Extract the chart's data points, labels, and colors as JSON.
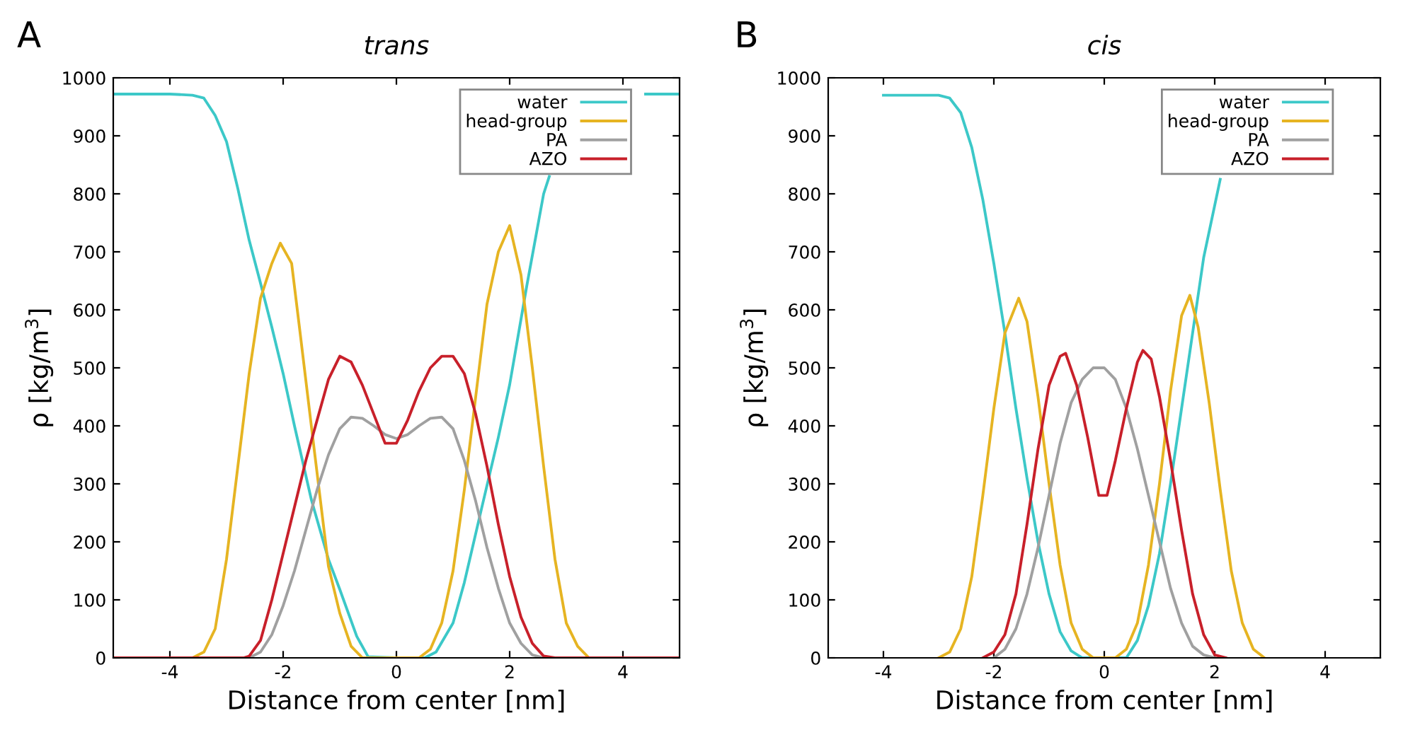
{
  "chart_data": [
    {
      "type": "line",
      "title": "trans",
      "xlabel": "Distance from center [nm]",
      "ylabel": "ρ [kg/m$^{3}$]",
      "annotations": [
        "A"
      ],
      "xlim": [
        -5,
        5
      ],
      "xticks": [
        -4,
        -2,
        0,
        2,
        4
      ],
      "ylim": [
        0,
        1000
      ],
      "yticks": [
        0,
        100,
        200,
        300,
        400,
        500,
        600,
        700,
        800,
        900,
        1000
      ],
      "grid": false,
      "legend": "top right",
      "marker": "none",
      "line_style": "solid",
      "series": [
        {
          "name": "water",
          "color": "#3cc8c8",
          "x": [
            -5,
            -4.5,
            -4,
            -3.6,
            -3.4,
            -3.2,
            -3.0,
            -2.8,
            -2.6,
            -2.4,
            -2.2,
            -2.0,
            -1.8,
            -1.5,
            -1.2,
            -1.0,
            -0.7,
            -0.5,
            0,
            0.5,
            0.7,
            1.0,
            1.2,
            1.5,
            1.8,
            2.0,
            2.3,
            2.6,
            2.7,
            3.5,
            4.4,
            5
          ],
          "values": [
            972,
            972,
            972,
            970,
            965,
            935,
            890,
            809,
            720,
            646,
            570,
            490,
            400,
            272,
            170,
            118,
            37,
            2,
            0,
            0,
            10,
            60,
            130,
            256,
            380,
            471,
            640,
            800,
            830,
            null,
            972,
            972
          ]
        },
        {
          "name": "head-group",
          "color": "#e6b422",
          "x": [
            -5,
            -3.6,
            -3.4,
            -3.2,
            -3.0,
            -2.8,
            -2.6,
            -2.4,
            -2.2,
            -2.05,
            -1.85,
            -1.7,
            -1.5,
            -1.2,
            -1.0,
            -0.8,
            -0.6,
            0,
            0.4,
            0.6,
            0.8,
            1.0,
            1.2,
            1.4,
            1.6,
            1.8,
            2.0,
            2.2,
            2.4,
            2.6,
            2.8,
            3.0,
            3.2,
            3.4,
            5
          ],
          "values": [
            0,
            0,
            10,
            50,
            170,
            330,
            490,
            620,
            680,
            715,
            680,
            560,
            398,
            158,
            77,
            20,
            0,
            0,
            0,
            15,
            60,
            150,
            290,
            450,
            610,
            700,
            745,
            660,
            500,
            330,
            170,
            60,
            20,
            0,
            0
          ]
        },
        {
          "name": "PA",
          "color": "#a0a0a0",
          "x": [
            -5,
            -2.6,
            -2.4,
            -2.2,
            -2.0,
            -1.8,
            -1.6,
            -1.4,
            -1.2,
            -1.0,
            -0.8,
            -0.6,
            -0.4,
            -0.2,
            0,
            0.2,
            0.4,
            0.6,
            0.8,
            1.0,
            1.2,
            1.4,
            1.6,
            1.8,
            2.0,
            2.2,
            2.4,
            2.6,
            5
          ],
          "values": [
            0,
            0,
            10,
            40,
            90,
            150,
            220,
            290,
            350,
            395,
            415,
            413,
            400,
            385,
            378,
            385,
            400,
            413,
            415,
            395,
            340,
            270,
            190,
            120,
            60,
            25,
            5,
            0,
            0
          ]
        },
        {
          "name": "AZO",
          "color": "#c8202a",
          "x": [
            -5,
            -2.7,
            -2.6,
            -2.4,
            -2.2,
            -2.0,
            -1.8,
            -1.6,
            -1.4,
            -1.2,
            -1.0,
            -0.8,
            -0.6,
            -0.4,
            -0.2,
            0,
            0.2,
            0.4,
            0.6,
            0.8,
            1.0,
            1.2,
            1.4,
            1.6,
            1.8,
            2.0,
            2.2,
            2.4,
            2.6,
            2.8,
            5
          ],
          "values": [
            0,
            0,
            3,
            30,
            100,
            180,
            260,
            340,
            410,
            480,
            520,
            510,
            470,
            420,
            370,
            370,
            410,
            460,
            500,
            520,
            520,
            490,
            420,
            330,
            230,
            140,
            70,
            25,
            3,
            0,
            0
          ]
        }
      ]
    },
    {
      "type": "line",
      "title": "cis",
      "xlabel": "Distance from center [nm]",
      "ylabel": "ρ [kg/m$^{3}$]",
      "annotations": [
        "B"
      ],
      "xlim": [
        -5,
        5
      ],
      "xticks": [
        -4,
        -2,
        0,
        2,
        4
      ],
      "ylim": [
        0,
        1000
      ],
      "yticks": [
        0,
        100,
        200,
        300,
        400,
        500,
        600,
        700,
        800,
        900,
        1000
      ],
      "grid": false,
      "legend": "top right",
      "marker": "none",
      "line_style": "solid",
      "series": [
        {
          "name": "water",
          "color": "#3cc8c8",
          "x": [
            -4,
            -3.5,
            -3.0,
            -2.8,
            -2.6,
            -2.4,
            -2.2,
            -2.0,
            -1.8,
            -1.6,
            -1.4,
            -1.2,
            -1.0,
            -0.8,
            -0.6,
            -0.4,
            0,
            0.4,
            0.6,
            0.8,
            1.0,
            1.2,
            1.4,
            1.6,
            1.8,
            2.0,
            2.1
          ],
          "values": [
            970,
            970,
            970,
            965,
            940,
            880,
            790,
            680,
            560,
            430,
            310,
            200,
            110,
            45,
            12,
            0,
            0,
            0,
            30,
            90,
            180,
            300,
            430,
            560,
            690,
            780,
            825
          ]
        },
        {
          "name": "head-group",
          "color": "#e6b422",
          "x": [
            -3.0,
            -2.8,
            -2.6,
            -2.4,
            -2.2,
            -2.0,
            -1.8,
            -1.55,
            -1.4,
            -1.2,
            -1.0,
            -0.8,
            -0.6,
            -0.4,
            -0.2,
            0.2,
            0.4,
            0.6,
            0.8,
            1.0,
            1.2,
            1.4,
            1.55,
            1.7,
            1.9,
            2.1,
            2.3,
            2.5,
            2.7,
            2.9
          ],
          "values": [
            0,
            10,
            50,
            140,
            280,
            430,
            560,
            620,
            580,
            450,
            300,
            160,
            60,
            15,
            0,
            0,
            15,
            60,
            160,
            300,
            460,
            590,
            625,
            570,
            440,
            290,
            150,
            60,
            15,
            0
          ]
        },
        {
          "name": "PA",
          "color": "#a0a0a0",
          "x": [
            -2.0,
            -1.8,
            -1.6,
            -1.4,
            -1.2,
            -1.0,
            -0.8,
            -0.6,
            -0.4,
            -0.2,
            0,
            0.2,
            0.4,
            0.6,
            0.8,
            1.0,
            1.2,
            1.4,
            1.6,
            1.8,
            2.0
          ],
          "values": [
            0,
            15,
            50,
            110,
            190,
            280,
            370,
            440,
            480,
            500,
            500,
            480,
            430,
            360,
            280,
            200,
            120,
            60,
            20,
            5,
            0
          ]
        },
        {
          "name": "AZO",
          "color": "#c8202a",
          "x": [
            -2.2,
            -2.0,
            -1.8,
            -1.6,
            -1.4,
            -1.2,
            -1.0,
            -0.8,
            -0.7,
            -0.5,
            -0.3,
            -0.1,
            0.05,
            0.2,
            0.4,
            0.6,
            0.7,
            0.85,
            1.0,
            1.2,
            1.4,
            1.6,
            1.8,
            2.0,
            2.2
          ],
          "values": [
            0,
            10,
            40,
            110,
            230,
            360,
            470,
            520,
            525,
            470,
            380,
            280,
            280,
            340,
            430,
            510,
            530,
            515,
            450,
            340,
            220,
            110,
            40,
            5,
            0
          ]
        }
      ]
    }
  ]
}
